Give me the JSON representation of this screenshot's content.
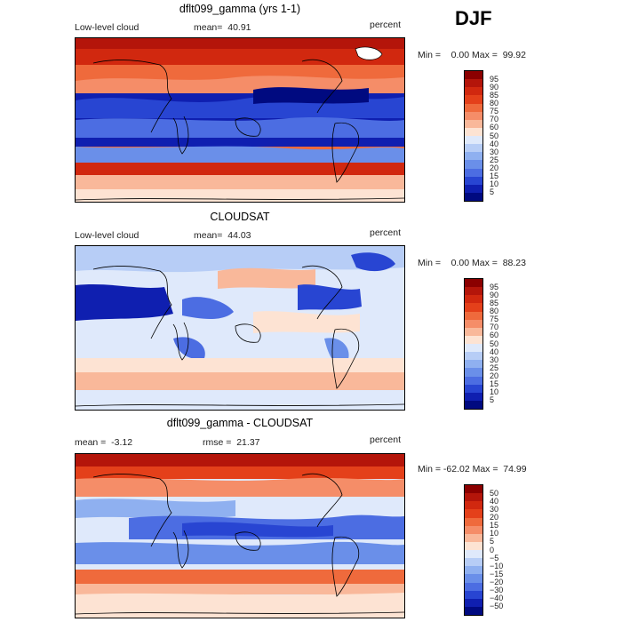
{
  "season": "DJF",
  "panels": [
    {
      "title": "dflt099_gamma (yrs 1-1)",
      "left_label": "Low-level cloud",
      "center_label": "mean=  40.91",
      "right_label": "percent",
      "minmax": "Min =    0.00 Max =  99.92",
      "colorbar": {
        "labels": [
          "95",
          "90",
          "85",
          "80",
          "75",
          "70",
          "60",
          "50",
          "40",
          "30",
          "25",
          "20",
          "15",
          "10",
          "5"
        ],
        "colors": [
          "#8b0000",
          "#b4150a",
          "#d1280f",
          "#e4401a",
          "#ef6a3c",
          "#f58d68",
          "#f9b89a",
          "#fde3d3",
          "#dfe9fb",
          "#b7cdf6",
          "#8fb0f0",
          "#6a8fe9",
          "#4c6de2",
          "#2845d2",
          "#0f1fb0",
          "#000a80"
        ]
      }
    },
    {
      "title": "CLOUDSAT",
      "left_label": "Low-level cloud",
      "center_label": "mean=  44.03",
      "right_label": "percent",
      "minmax": "Min =    0.00 Max =  88.23",
      "colorbar": {
        "labels": [
          "95",
          "90",
          "85",
          "80",
          "75",
          "70",
          "60",
          "50",
          "40",
          "30",
          "25",
          "20",
          "15",
          "10",
          "5"
        ],
        "colors": [
          "#8b0000",
          "#b4150a",
          "#d1280f",
          "#e4401a",
          "#ef6a3c",
          "#f58d68",
          "#f9b89a",
          "#fde3d3",
          "#dfe9fb",
          "#b7cdf6",
          "#8fb0f0",
          "#6a8fe9",
          "#4c6de2",
          "#2845d2",
          "#0f1fb0",
          "#000a80"
        ]
      }
    },
    {
      "title": "dflt099_gamma - CLOUDSAT",
      "left_label": "mean =  -3.12",
      "center_label": "rmse =  21.37",
      "right_label": "percent",
      "minmax": "Min = -62.02 Max =  74.99",
      "colorbar": {
        "labels": [
          "50",
          "40",
          "30",
          "20",
          "15",
          "10",
          "5",
          "0",
          "−5",
          "−10",
          "−15",
          "−20",
          "−30",
          "−40",
          "−50"
        ],
        "colors": [
          "#8b0000",
          "#b4150a",
          "#d1280f",
          "#e4401a",
          "#ef6a3c",
          "#f58d68",
          "#f9b89a",
          "#fde3d3",
          "#dfe9fb",
          "#b7cdf6",
          "#8fb0f0",
          "#6a8fe9",
          "#4c6de2",
          "#2845d2",
          "#0f1fb0",
          "#000a80"
        ]
      }
    }
  ]
}
